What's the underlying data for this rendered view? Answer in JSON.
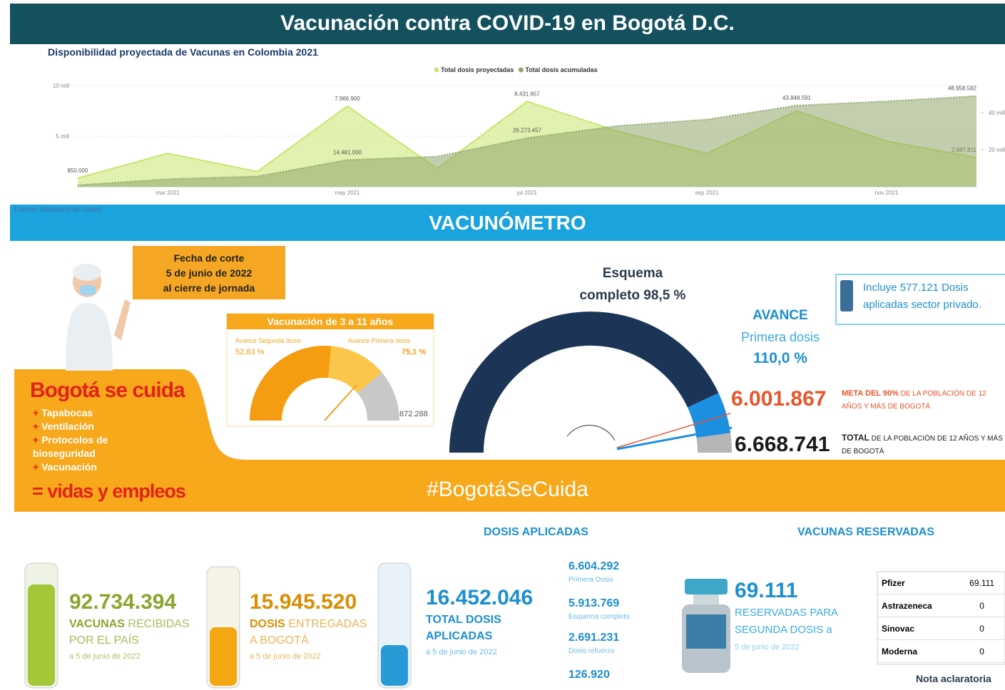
{
  "header": {
    "title": "Vacunación contra COVID-19 en Bogotá D.C."
  },
  "chart_data": {
    "type": "area",
    "title": "Disponibilidad proyectada de Vacunas en Colombia 2021",
    "categories": [
      null,
      "mar 2021",
      null,
      "may 2021",
      null,
      "jul 2021",
      null,
      "sep 2021",
      null,
      "nov 2021",
      null
    ],
    "series": [
      {
        "name": "Total dosis proyectadas",
        "color": "#c9e66e",
        "values": [
          850000,
          3300000,
          1500000,
          7966900,
          1800000,
          8431657,
          5500000,
          3300000,
          7500000,
          4500000,
          2887811
        ],
        "value_labels": [
          "850.000",
          null,
          null,
          "7.966.900",
          null,
          "8.431.657",
          null,
          null,
          null,
          null,
          "2.887.811"
        ]
      },
      {
        "name": "Total dosis acumuladas",
        "color": "#8fa66a",
        "axis": "y2",
        "values": [
          850000,
          4100000,
          5600000,
          14481000,
          16300000,
          26273457,
          32800000,
          36300000,
          43848591,
          46100000,
          48958582
        ],
        "value_labels": [
          null,
          null,
          null,
          "14.481.000",
          null,
          "26.273.457",
          null,
          null,
          "43.848.591",
          null,
          "48.958.582"
        ]
      }
    ],
    "ylim": [
      0,
      10000000
    ],
    "yticks": [
      {
        "value": 5000000,
        "label": "5 mill"
      },
      {
        "value": 10000000,
        "label": "10 mill"
      }
    ],
    "y2lim": [
      0,
      54600000
    ],
    "y2ticks": [
      {
        "value": 20000000,
        "label": "20 mill"
      },
      {
        "value": 40000000,
        "label": "40 mill"
      }
    ],
    "grid": true,
    "legend_position": "top"
  },
  "source": "Fuente: Ministerio de Salud",
  "vacunometro": {
    "title": "VACUNÓMETRO",
    "cutoff": [
      "Fecha de corte",
      "5 de junio de 2022",
      "al cierre de jornada"
    ],
    "kids": {
      "title": "Vacunación de 3 a 11 años",
      "second_label": "Avance Segunda dosis",
      "second_value": "52,83 %",
      "first_label": "Avance Primera dosis",
      "first_value": "75,1 %",
      "total": "872.288"
    },
    "scheme": [
      "Esquema",
      "completo 98,5 %"
    ],
    "progress": {
      "label": "AVANCE",
      "sub": "Primera dosis",
      "value": "110,0 %"
    },
    "note": "Incluye 577.121 Dosis aplicadas sector privado.",
    "goal": {
      "value": "6.001.867",
      "lead": "META DEL 90%",
      "text": "DE LA POBLACIÓN DE 12 AÑOS Y MÁS DE BOGOTÁ"
    },
    "total": {
      "value": "6.668.741",
      "lead": "TOTAL",
      "text": "DE LA POBLACIÓN DE 12 AÑOS Y MÁS DE BOGOTÁ"
    }
  },
  "campaign": {
    "title": "Bogotá se cuida",
    "items": [
      "Tapabocas",
      "Ventilación",
      "Protocolos de bioseguridad",
      "Vacunación"
    ],
    "result": "= vidas y empleos",
    "hashtag": "#BogotáSeCuida"
  },
  "summary": {
    "applied_title": "DOSIS APLICADAS",
    "reserved_title": "VACUNAS RESERVADAS",
    "received": {
      "value": "92.734.394",
      "lead": "VACUNAS",
      "text": "RECIBIDAS POR EL PAÍS",
      "date": "a 5 de junio de 2022"
    },
    "delivered": {
      "value": "15.945.520",
      "lead": "DOSIS",
      "text": "ENTREGADAS A BOGOTÁ",
      "date": "a 5 de junio de 2022"
    },
    "applied": {
      "value": "16.452.046",
      "text": "TOTAL DOSIS APLICADAS",
      "date": "a 5 de junio de 2022"
    },
    "breakdown": [
      {
        "value": "6.604.292",
        "label": "Primera Dosis"
      },
      {
        "value": "5.913.769",
        "label": "Esquema completo"
      },
      {
        "value": "2.691.231",
        "label": "Dosis refuerzo"
      },
      {
        "value": "126.920"
      }
    ],
    "reserved": {
      "value": "69.111",
      "text": "RESERVADAS PARA SEGUNDA DOSIS a",
      "date": "5 de junio de 2022"
    },
    "table": [
      [
        "Pfizer",
        "69.111"
      ],
      [
        "Astrazeneca",
        "0"
      ],
      [
        "Sinovac",
        "0"
      ],
      [
        "Moderna",
        "0"
      ]
    ],
    "footnote": "Nota aclaratoria"
  }
}
